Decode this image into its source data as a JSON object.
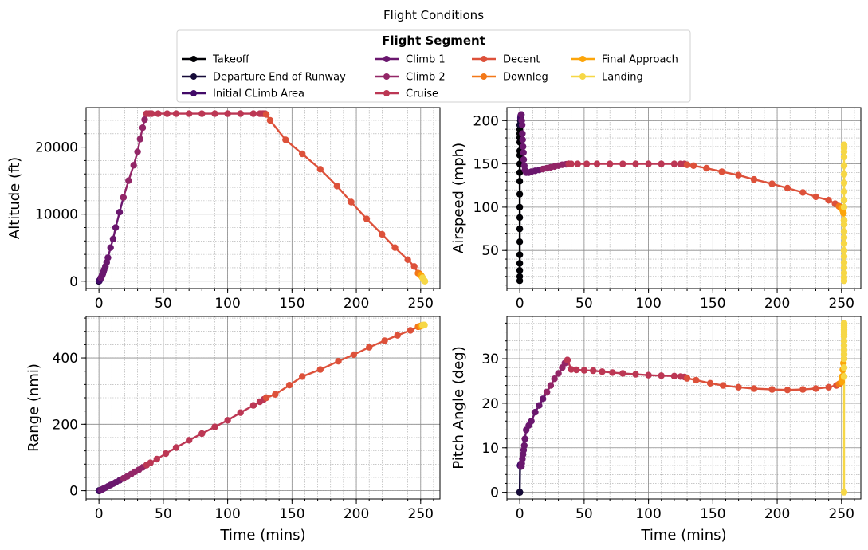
{
  "figure": {
    "title": "Flight Conditions",
    "legend_title": "Flight Segment",
    "legend_position": "top-center"
  },
  "segments": [
    {
      "name": "Takeoff",
      "color": "#000004"
    },
    {
      "name": "Departure End of Runway",
      "color": "#160b39"
    },
    {
      "name": "Initial CLimb Area",
      "color": "#420a68"
    },
    {
      "name": "Climb 1",
      "color": "#6a176e"
    },
    {
      "name": "Climb 2",
      "color": "#932667"
    },
    {
      "name": "Cruise",
      "color": "#bc3754"
    },
    {
      "name": "Decent",
      "color": "#dd513a"
    },
    {
      "name": "Downleg",
      "color": "#f37819"
    },
    {
      "name": "Final Approach",
      "color": "#fca50a"
    },
    {
      "name": "Landing",
      "color": "#f6d746"
    }
  ],
  "chart_data": [
    {
      "type": "line",
      "ylabel": "Altitude (ft)",
      "xlabel": "",
      "xlim": [
        -10,
        265
      ],
      "ylim": [
        -1100,
        25900
      ],
      "xticks": [
        0,
        50,
        100,
        150,
        200,
        250
      ],
      "yticks": [
        0,
        10000,
        20000
      ],
      "grid": true,
      "series": [
        {
          "segment": 0,
          "x": [
            0,
            0,
            0,
            0,
            0
          ],
          "y": [
            0,
            0,
            0,
            0,
            0
          ]
        },
        {
          "segment": 1,
          "x": [
            0,
            0.3
          ],
          "y": [
            0,
            50
          ]
        },
        {
          "segment": 2,
          "x": [
            0.3,
            0.6,
            1,
            1.5
          ],
          "y": [
            50,
            150,
            300,
            500
          ]
        },
        {
          "segment": 3,
          "x": [
            1.5,
            2,
            2.5,
            3,
            3.5,
            4,
            5,
            6,
            7,
            9,
            11,
            13,
            16,
            19
          ],
          "y": [
            500,
            700,
            900,
            1100,
            1400,
            1700,
            2200,
            2800,
            3500,
            5000,
            6300,
            8000,
            10300,
            12500
          ]
        },
        {
          "segment": 4,
          "x": [
            19,
            23,
            27,
            30,
            32,
            34,
            35.5,
            37
          ],
          "y": [
            12500,
            15000,
            17300,
            19300,
            21200,
            22900,
            24100,
            25000
          ]
        },
        {
          "segment": 5,
          "x": [
            37,
            39,
            41,
            46,
            53,
            60,
            70,
            80,
            90,
            100,
            110,
            120,
            125,
            127,
            128,
            129,
            130
          ],
          "y": [
            25000,
            25000,
            25000,
            25000,
            25000,
            25000,
            25000,
            25000,
            25000,
            25000,
            25000,
            25000,
            25000,
            25000,
            25000,
            25000,
            24900
          ]
        },
        {
          "segment": 6,
          "x": [
            130,
            133,
            145,
            158,
            172,
            185,
            196,
            208,
            220,
            230,
            240,
            245,
            248
          ],
          "y": [
            24900,
            24000,
            21100,
            19000,
            16700,
            14200,
            11800,
            9300,
            7000,
            5000,
            3200,
            2200,
            1200
          ]
        },
        {
          "segment": 7,
          "x": [
            248,
            249,
            249.5,
            250
          ],
          "y": [
            1200,
            1100,
            1000,
            900
          ]
        },
        {
          "segment": 8,
          "x": [
            250,
            250.5,
            251,
            251.5
          ],
          "y": [
            900,
            800,
            650,
            500
          ]
        },
        {
          "segment": 9,
          "x": [
            251.5,
            252,
            252.5,
            253,
            253.3
          ],
          "y": [
            500,
            300,
            150,
            50,
            0
          ]
        }
      ]
    },
    {
      "type": "line",
      "ylabel": "Airspeed (mph)",
      "xlabel": "",
      "xlim": [
        -10,
        265
      ],
      "ylim": [
        6,
        215
      ],
      "xticks": [
        0,
        50,
        100,
        150,
        200,
        250
      ],
      "yticks": [
        50,
        100,
        150,
        200
      ],
      "grid": true,
      "series": [
        {
          "segment": 0,
          "x": [
            0,
            0,
            0,
            0,
            0,
            0,
            0,
            0,
            0,
            0,
            0,
            0,
            0,
            0,
            0,
            0,
            0,
            0,
            0,
            0
          ],
          "y": [
            15,
            20,
            27,
            35,
            45,
            60,
            75,
            88,
            100,
            115,
            130,
            140,
            150,
            160,
            165,
            175,
            180,
            185,
            190,
            195
          ]
        },
        {
          "segment": 1,
          "x": [
            0.2,
            0.4,
            0.6
          ],
          "y": [
            195,
            200,
            203
          ]
        },
        {
          "segment": 2,
          "x": [
            0.6,
            0.8,
            1.2
          ],
          "y": [
            203,
            206,
            207
          ]
        },
        {
          "segment": 3,
          "x": [
            1.2,
            1.5,
            1.8,
            2,
            2.2,
            2.5,
            2.8,
            3,
            3.5,
            4,
            5,
            7,
            9,
            12,
            15,
            18
          ],
          "y": [
            207,
            200,
            195,
            185,
            178,
            170,
            163,
            155,
            148,
            143,
            140,
            140,
            141,
            142,
            143,
            144
          ]
        },
        {
          "segment": 4,
          "x": [
            18,
            21,
            24,
            27,
            30,
            33,
            36,
            38
          ],
          "y": [
            144,
            145,
            146,
            147,
            148,
            149,
            149.5,
            150
          ]
        },
        {
          "segment": 5,
          "x": [
            38,
            40,
            45,
            52,
            60,
            70,
            80,
            90,
            100,
            110,
            120,
            125,
            128,
            130
          ],
          "y": [
            150,
            150,
            150,
            150,
            150,
            150,
            150,
            150,
            150,
            150,
            150,
            150,
            150,
            149
          ]
        },
        {
          "segment": 6,
          "x": [
            130,
            135,
            145,
            157,
            170,
            182,
            196,
            208,
            220,
            230,
            240,
            245,
            248
          ],
          "y": [
            149,
            148,
            145,
            141,
            137,
            132,
            127,
            122,
            117,
            112,
            108,
            104,
            101
          ]
        },
        {
          "segment": 7,
          "x": [
            248,
            249,
            250
          ],
          "y": [
            101,
            100,
            99
          ]
        },
        {
          "segment": 8,
          "x": [
            250,
            250.5,
            251,
            251.5,
            252
          ],
          "y": [
            99,
            98,
            96,
            93,
            85
          ]
        },
        {
          "segment": 9,
          "x": [
            252,
            252,
            252,
            252,
            252,
            252,
            252,
            252,
            252,
            252,
            252,
            252,
            252,
            252,
            252,
            252,
            252,
            252,
            252,
            252,
            252,
            252
          ],
          "y": [
            85,
            80,
            72,
            65,
            58,
            50,
            43,
            36,
            30,
            24,
            19,
            15,
            100,
            108,
            118,
            128,
            138,
            148,
            158,
            164,
            168,
            172
          ]
        }
      ]
    },
    {
      "type": "line",
      "ylabel": "Range (nmi)",
      "xlabel": "Time (mins)",
      "xlim": [
        -10,
        265
      ],
      "ylim": [
        -25,
        525
      ],
      "xticks": [
        0,
        50,
        100,
        150,
        200,
        250
      ],
      "yticks": [
        0,
        200,
        400
      ],
      "grid": true,
      "series": [
        {
          "segment": 0,
          "x": [
            0,
            0,
            0
          ],
          "y": [
            0,
            0,
            0
          ]
        },
        {
          "segment": 1,
          "x": [
            0,
            0.3
          ],
          "y": [
            0,
            0.3
          ]
        },
        {
          "segment": 2,
          "x": [
            0.3,
            0.6,
            1,
            1.5
          ],
          "y": [
            0.3,
            0.6,
            1,
            1.6
          ]
        },
        {
          "segment": 3,
          "x": [
            1.5,
            2,
            3,
            4,
            5,
            7,
            9,
            11,
            13,
            16,
            19
          ],
          "y": [
            1.6,
            3,
            5,
            7,
            9,
            13,
            17,
            21,
            25,
            31,
            37
          ]
        },
        {
          "segment": 4,
          "x": [
            19,
            22,
            25,
            28,
            31,
            34,
            37
          ],
          "y": [
            37,
            43,
            50,
            57,
            63,
            70,
            77
          ]
        },
        {
          "segment": 5,
          "x": [
            37,
            40,
            45,
            52,
            60,
            70,
            80,
            90,
            100,
            110,
            120,
            125,
            128,
            130
          ],
          "y": [
            77,
            84,
            95,
            112,
            130,
            152,
            172,
            192,
            212,
            235,
            257,
            268,
            275,
            280
          ]
        },
        {
          "segment": 6,
          "x": [
            130,
            137,
            148,
            158,
            172,
            186,
            198,
            210,
            222,
            232,
            242,
            248
          ],
          "y": [
            280,
            290,
            318,
            344,
            365,
            390,
            410,
            432,
            452,
            468,
            483,
            494
          ]
        },
        {
          "segment": 7,
          "x": [
            248,
            249,
            250
          ],
          "y": [
            494,
            495,
            496
          ]
        },
        {
          "segment": 8,
          "x": [
            250,
            250.5,
            251,
            251.5
          ],
          "y": [
            496,
            497,
            497.5,
            498
          ]
        },
        {
          "segment": 9,
          "x": [
            251.5,
            252,
            252.5,
            253
          ],
          "y": [
            498,
            498.5,
            499,
            499
          ]
        }
      ]
    },
    {
      "type": "line",
      "ylabel": "Pitch Angle (deg)",
      "xlabel": "Time (mins)",
      "xlim": [
        -10,
        265
      ],
      "ylim": [
        -1.5,
        39.5
      ],
      "xticks": [
        0,
        50,
        100,
        150,
        200,
        250
      ],
      "yticks": [
        0,
        10,
        20,
        30
      ],
      "grid": true,
      "series": [
        {
          "segment": 0,
          "x": [
            0,
            0,
            0,
            0,
            0
          ],
          "y": [
            0,
            0,
            0,
            0,
            0
          ]
        },
        {
          "segment": 1,
          "x": [
            0,
            0.2
          ],
          "y": [
            0,
            6
          ]
        },
        {
          "segment": 2,
          "x": [
            0.2,
            0.5,
            0.8,
            1.2
          ],
          "y": [
            6,
            6.2,
            6.4,
            5.8
          ]
        },
        {
          "segment": 3,
          "x": [
            1.2,
            1.5,
            2,
            2.5,
            3,
            3.5,
            4,
            5,
            7,
            9,
            12,
            15,
            18,
            21
          ],
          "y": [
            5.8,
            6.5,
            7.5,
            8.5,
            9.5,
            10.5,
            12,
            14,
            15,
            16,
            18,
            19.5,
            21,
            22.5
          ]
        },
        {
          "segment": 4,
          "x": [
            21,
            24,
            27,
            30,
            33,
            35,
            37
          ],
          "y": [
            22.5,
            24,
            25.5,
            26.7,
            28,
            29,
            29.7
          ]
        },
        {
          "segment": 5,
          "x": [
            37,
            40,
            44,
            50,
            57,
            64,
            72,
            80,
            90,
            100,
            110,
            120,
            125,
            128,
            130
          ],
          "y": [
            29.7,
            27.6,
            27.5,
            27.4,
            27.3,
            27.1,
            26.9,
            26.7,
            26.5,
            26.3,
            26.2,
            26.1,
            26,
            25.9,
            25.6
          ]
        },
        {
          "segment": 6,
          "x": [
            130,
            137,
            148,
            158,
            170,
            182,
            196,
            208,
            220,
            230,
            240,
            246,
            248
          ],
          "y": [
            25.6,
            25.2,
            24.5,
            24,
            23.6,
            23.3,
            23.1,
            23,
            23.1,
            23.3,
            23.6,
            24,
            24.3
          ]
        },
        {
          "segment": 7,
          "x": [
            248,
            249,
            250
          ],
          "y": [
            24.3,
            24.5,
            24.8
          ]
        },
        {
          "segment": 8,
          "x": [
            250,
            250.5,
            251,
            251.5,
            252
          ],
          "y": [
            24.8,
            26,
            27.5,
            29,
            30
          ]
        },
        {
          "segment": 9,
          "x": [
            252,
            252,
            252,
            252,
            252,
            252,
            252,
            252,
            252,
            252,
            252,
            252,
            252,
            252,
            252
          ],
          "y": [
            30,
            31,
            32,
            33,
            34,
            35,
            35.5,
            36,
            36.5,
            37,
            37.5,
            38,
            28,
            26,
            0
          ]
        }
      ]
    }
  ]
}
